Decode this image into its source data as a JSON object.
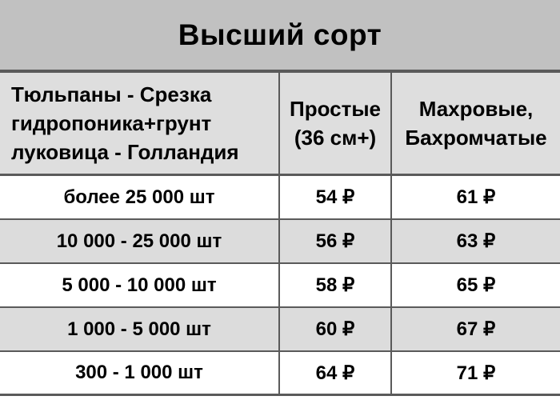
{
  "title": "Высший сорт",
  "colors": {
    "title_bg": "#c1c1c1",
    "header_bg": "#dedede",
    "row_bg": "#ffffff",
    "row_alt_bg": "#dcdcdc",
    "border": "#5a5a5a",
    "text": "#000000"
  },
  "header": {
    "product": "Тюльпаны - Срезка\nгидропоника+грунт\nлуковица - Голландия",
    "simple": "Простые\n(36 см+)",
    "double": "Махровые,\nБахромчатые"
  },
  "rows": [
    {
      "qty": "более 25 000 шт",
      "simple": "54 ₽",
      "double": "61 ₽"
    },
    {
      "qty": "10 000 - 25 000 шт",
      "simple": "56 ₽",
      "double": "63 ₽"
    },
    {
      "qty": "5 000 - 10 000 шт",
      "simple": "58 ₽",
      "double": "65 ₽"
    },
    {
      "qty": "1 000 - 5 000 шт",
      "simple": "60 ₽",
      "double": "67 ₽"
    },
    {
      "qty": "300 - 1 000 шт",
      "simple": "64 ₽",
      "double": "71 ₽"
    }
  ]
}
